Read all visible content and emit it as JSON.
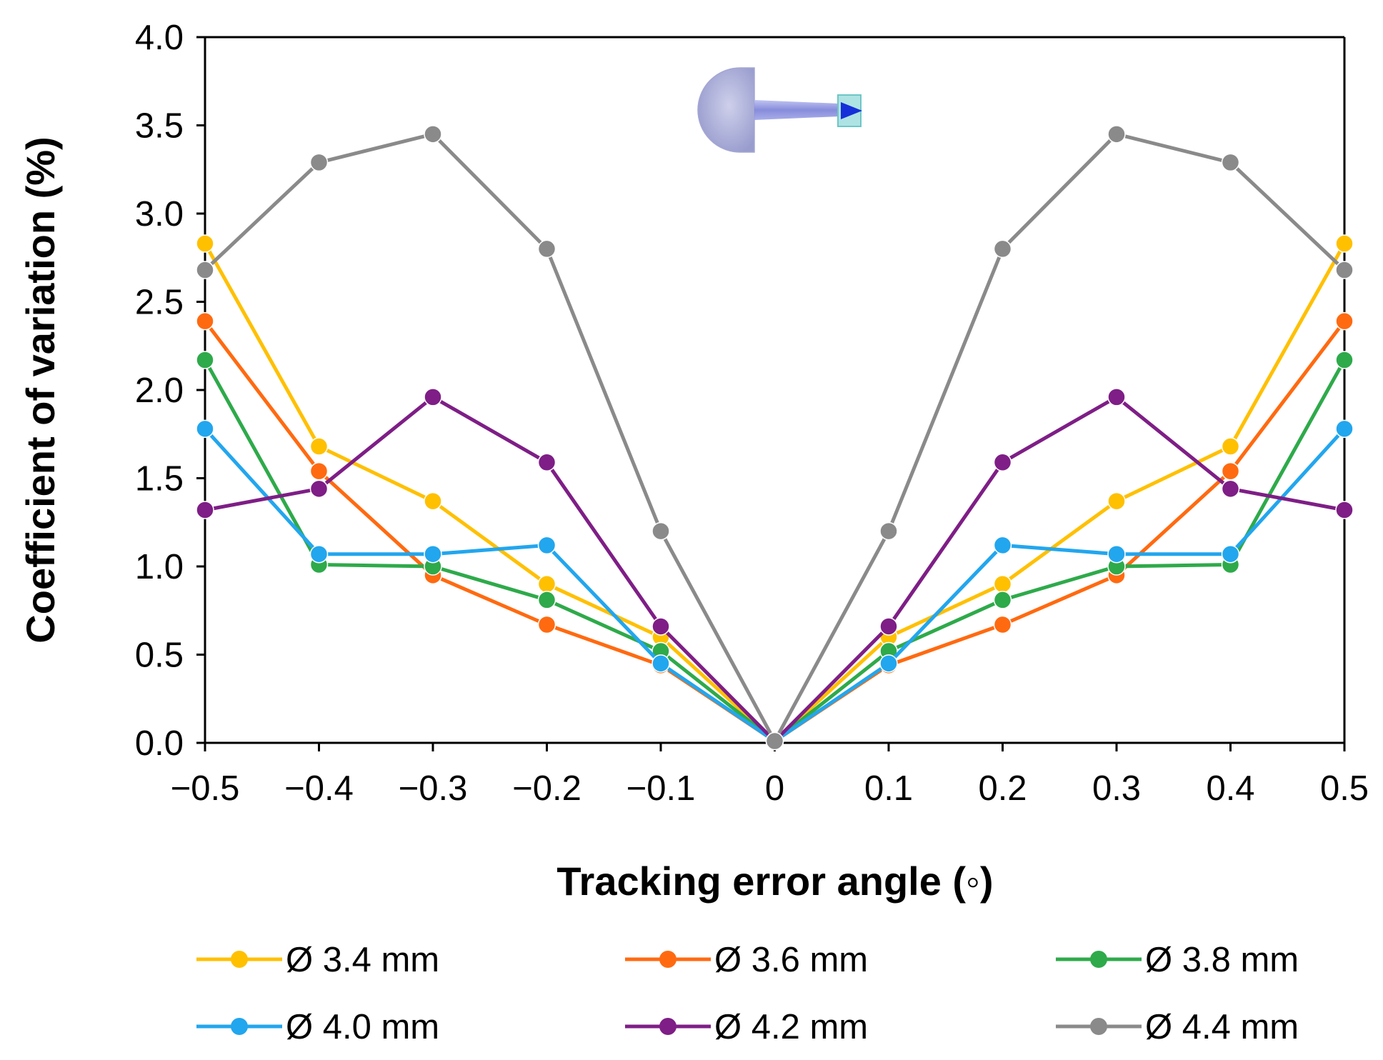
{
  "chart_data": {
    "type": "line",
    "title": "",
    "xlabel": "Tracking error angle (◦)",
    "ylabel": "Coefficient of variation (%)",
    "xlim": [
      -0.5,
      0.5
    ],
    "ylim": [
      0,
      4.0
    ],
    "x": [
      -0.5,
      -0.4,
      -0.3,
      -0.2,
      -0.1,
      0,
      0.1,
      0.2,
      0.3,
      0.4,
      0.5
    ],
    "x_tick_labels": [
      "−0.5",
      "−0.4",
      "−0.3",
      "−0.2",
      "−0.1",
      "0",
      "0.1",
      "0.2",
      "0.3",
      "0.4",
      "0.5"
    ],
    "y_ticks": [
      0.0,
      0.5,
      1.0,
      1.5,
      2.0,
      2.5,
      3.0,
      3.5,
      4.0
    ],
    "y_tick_labels": [
      "0.0",
      "0.5",
      "1.0",
      "1.5",
      "2.0",
      "2.5",
      "3.0",
      "3.5",
      "4.0"
    ],
    "grid": false,
    "legend_position": "bottom",
    "inset_icon": "lens-tube-sensor-icon",
    "series": [
      {
        "name": "Ø 3.4 mm",
        "color": "#FFC000",
        "values": [
          2.83,
          1.68,
          1.37,
          0.9,
          0.6,
          0.01,
          0.6,
          0.9,
          1.37,
          1.68,
          2.83
        ]
      },
      {
        "name": "Ø 3.6 mm",
        "color": "#FF6A10",
        "values": [
          2.39,
          1.54,
          0.95,
          0.67,
          0.44,
          0.01,
          0.44,
          0.67,
          0.95,
          1.54,
          2.39
        ]
      },
      {
        "name": "Ø 3.8 mm",
        "color": "#2EAA4A",
        "values": [
          2.17,
          1.01,
          1.0,
          0.81,
          0.52,
          0.01,
          0.52,
          0.81,
          1.0,
          1.01,
          2.17
        ]
      },
      {
        "name": "Ø 4.0 mm",
        "color": "#22A6EE",
        "values": [
          1.78,
          1.07,
          1.07,
          1.12,
          0.45,
          0.01,
          0.45,
          1.12,
          1.07,
          1.07,
          1.78
        ]
      },
      {
        "name": "Ø 4.2 mm",
        "color": "#7E1E86",
        "values": [
          1.32,
          1.44,
          1.96,
          1.59,
          0.66,
          0.01,
          0.66,
          1.59,
          1.96,
          1.44,
          1.32
        ]
      },
      {
        "name": "Ø 4.4 mm",
        "color": "#8A8A8A",
        "values": [
          2.68,
          3.29,
          3.45,
          2.8,
          1.2,
          0.01,
          1.2,
          2.8,
          3.45,
          3.29,
          2.68
        ]
      }
    ]
  }
}
